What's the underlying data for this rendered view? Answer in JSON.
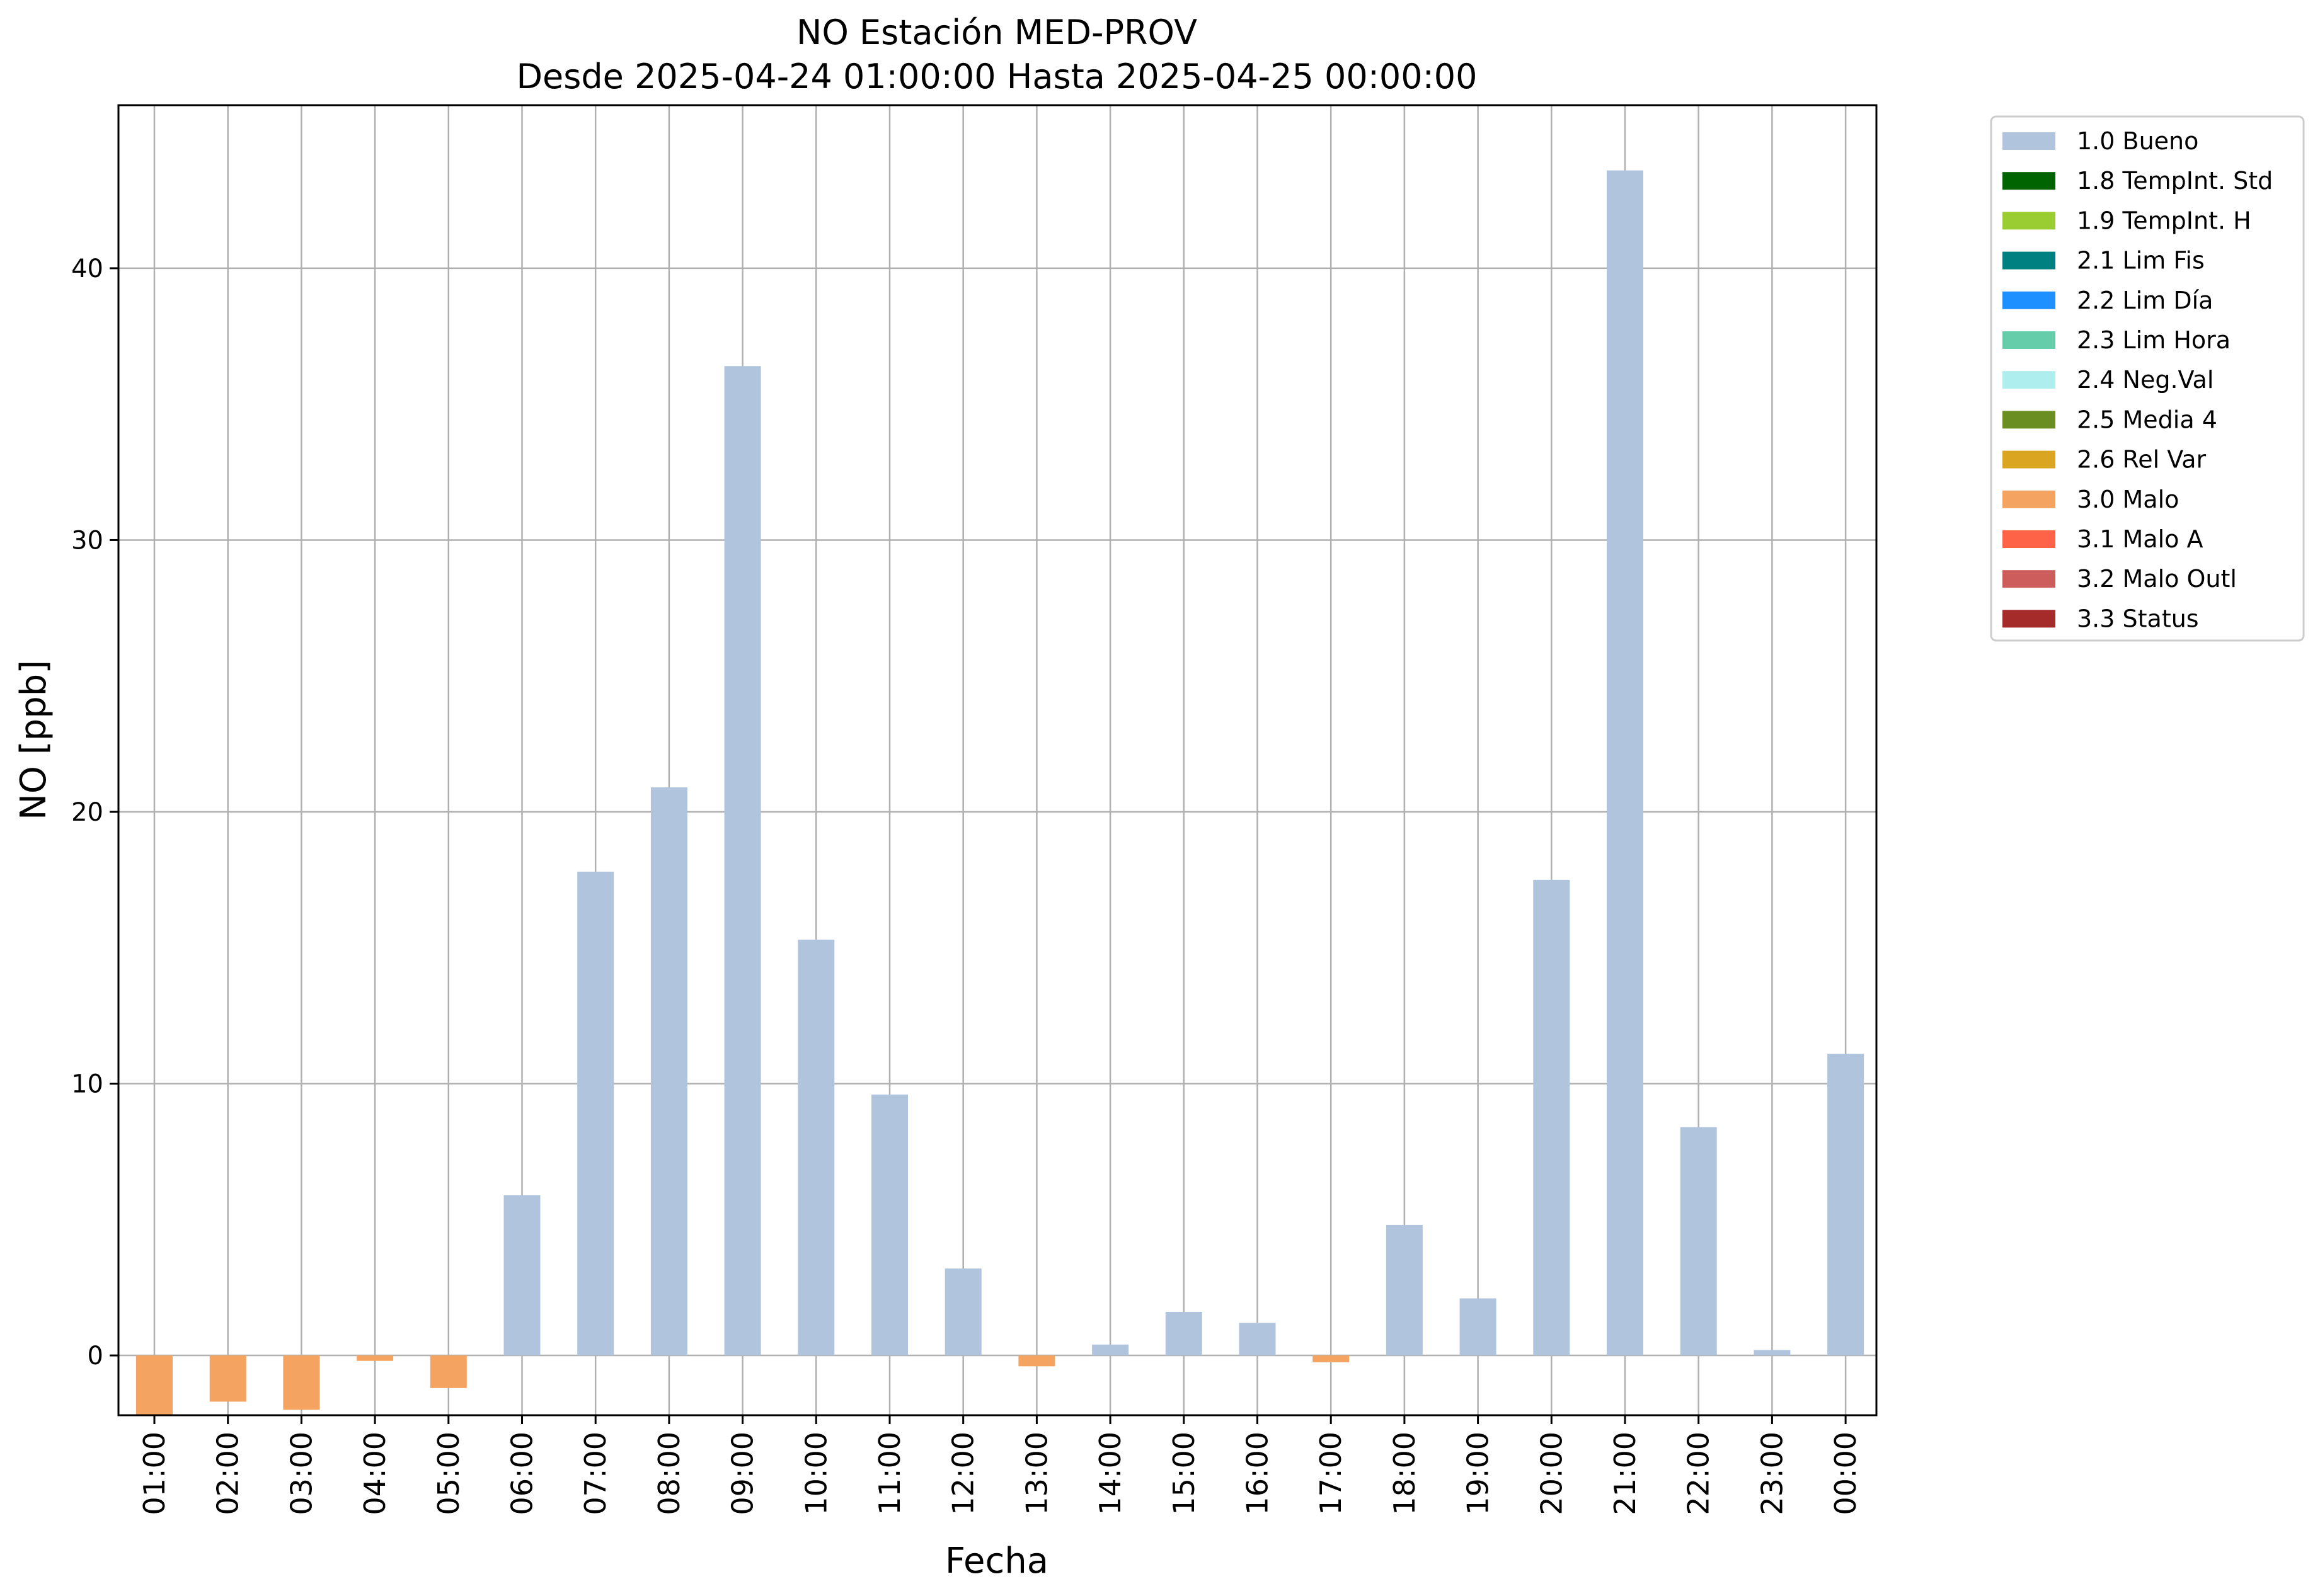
{
  "chart_data": {
    "type": "bar",
    "title_line1": "NO Estación MED-PROV",
    "title_line2": "Desde 2025-04-24 01:00:00 Hasta 2025-04-25 00:00:00",
    "xlabel": "Fecha",
    "ylabel": "NO [ppb]",
    "ylim": [
      -2.2,
      46
    ],
    "yticks": [
      0,
      10,
      20,
      30,
      40
    ],
    "grid": true,
    "legend_position": "outside-top-right",
    "categories": [
      "01:00",
      "02:00",
      "03:00",
      "04:00",
      "05:00",
      "06:00",
      "07:00",
      "08:00",
      "09:00",
      "10:00",
      "11:00",
      "12:00",
      "13:00",
      "14:00",
      "15:00",
      "16:00",
      "17:00",
      "18:00",
      "19:00",
      "20:00",
      "21:00",
      "22:00",
      "23:00",
      "00:00"
    ],
    "values": [
      -2.2,
      -1.7,
      -2.0,
      -0.2,
      -1.2,
      5.9,
      17.8,
      20.9,
      36.4,
      15.3,
      9.6,
      3.2,
      -0.4,
      0.4,
      1.6,
      1.2,
      -0.25,
      4.8,
      2.1,
      17.5,
      43.6,
      8.4,
      0.2,
      11.1
    ],
    "flags": [
      "3.0 Malo",
      "3.0 Malo",
      "3.0 Malo",
      "3.0 Malo",
      "3.0 Malo",
      "1.0 Bueno",
      "1.0 Bueno",
      "1.0 Bueno",
      "1.0 Bueno",
      "1.0 Bueno",
      "1.0 Bueno",
      "1.0 Bueno",
      "3.0 Malo",
      "1.0 Bueno",
      "1.0 Bueno",
      "1.0 Bueno",
      "3.0 Malo",
      "1.0 Bueno",
      "1.0 Bueno",
      "1.0 Bueno",
      "1.0 Bueno",
      "1.0 Bueno",
      "1.0 Bueno",
      "1.0 Bueno"
    ],
    "legend": [
      {
        "label": "1.0 Bueno",
        "color": "#b0c4de"
      },
      {
        "label": "1.8 TempInt. Std",
        "color": "#006400"
      },
      {
        "label": "1.9 TempInt. H",
        "color": "#9acd32"
      },
      {
        "label": "2.1 Lim Fis",
        "color": "#008080"
      },
      {
        "label": "2.2 Lim Día",
        "color": "#1e90ff"
      },
      {
        "label": "2.3 Lim Hora",
        "color": "#66cdaa"
      },
      {
        "label": "2.4 Neg.Val",
        "color": "#afeeee"
      },
      {
        "label": "2.5 Media 4",
        "color": "#6b8e23"
      },
      {
        "label": "2.6 Rel Var",
        "color": "#daa520"
      },
      {
        "label": "3.0 Malo",
        "color": "#f4a460"
      },
      {
        "label": "3.1 Malo A",
        "color": "#ff6347"
      },
      {
        "label": "3.2 Malo Outl",
        "color": "#cd5c5c"
      },
      {
        "label": "3.3 Status",
        "color": "#a52a2a"
      }
    ]
  }
}
